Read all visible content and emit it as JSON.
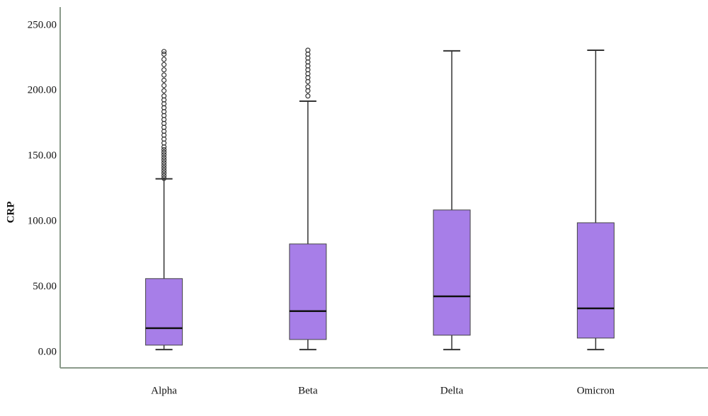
{
  "chart_data": {
    "type": "box",
    "y_label": "CRP",
    "categories": [
      "Alpha",
      "Beta",
      "Delta",
      "Omicron"
    ],
    "color": "#a77ee8",
    "boxes": [
      {
        "min": 2,
        "q1": 5.4,
        "median": 18.4,
        "q3": 56.3,
        "max": 132.6,
        "outliers": [
          133,
          135,
          137,
          139,
          141,
          143,
          145,
          147,
          149,
          151,
          153,
          155,
          157,
          160,
          163,
          166,
          169,
          172,
          175,
          178,
          181,
          184,
          187,
          190,
          193,
          196,
          200,
          204,
          208,
          212,
          216,
          220,
          224,
          228,
          230
        ]
      },
      {
        "min": 2,
        "q1": 9.7,
        "median": 31.4,
        "q3": 82.8,
        "max": 192,
        "outliers": [
          196,
          200,
          203,
          207,
          210,
          213,
          216,
          219,
          222,
          225,
          228,
          231
        ]
      },
      {
        "min": 2,
        "q1": 13,
        "median": 42.7,
        "q3": 108.8,
        "max": 230.5,
        "outliers": []
      },
      {
        "min": 2,
        "q1": 10.8,
        "median": 33.5,
        "q3": 99,
        "max": 231,
        "outliers": []
      }
    ],
    "ylim": [
      -12,
      264
    ],
    "yticks": [
      {
        "value": 0,
        "label": "0.00"
      },
      {
        "value": 50,
        "label": "50.00"
      },
      {
        "value": 100,
        "label": "100.00"
      },
      {
        "value": 150,
        "label": "150.00"
      },
      {
        "value": 200,
        "label": "200.00"
      },
      {
        "value": 250,
        "label": "250.00"
      }
    ]
  }
}
